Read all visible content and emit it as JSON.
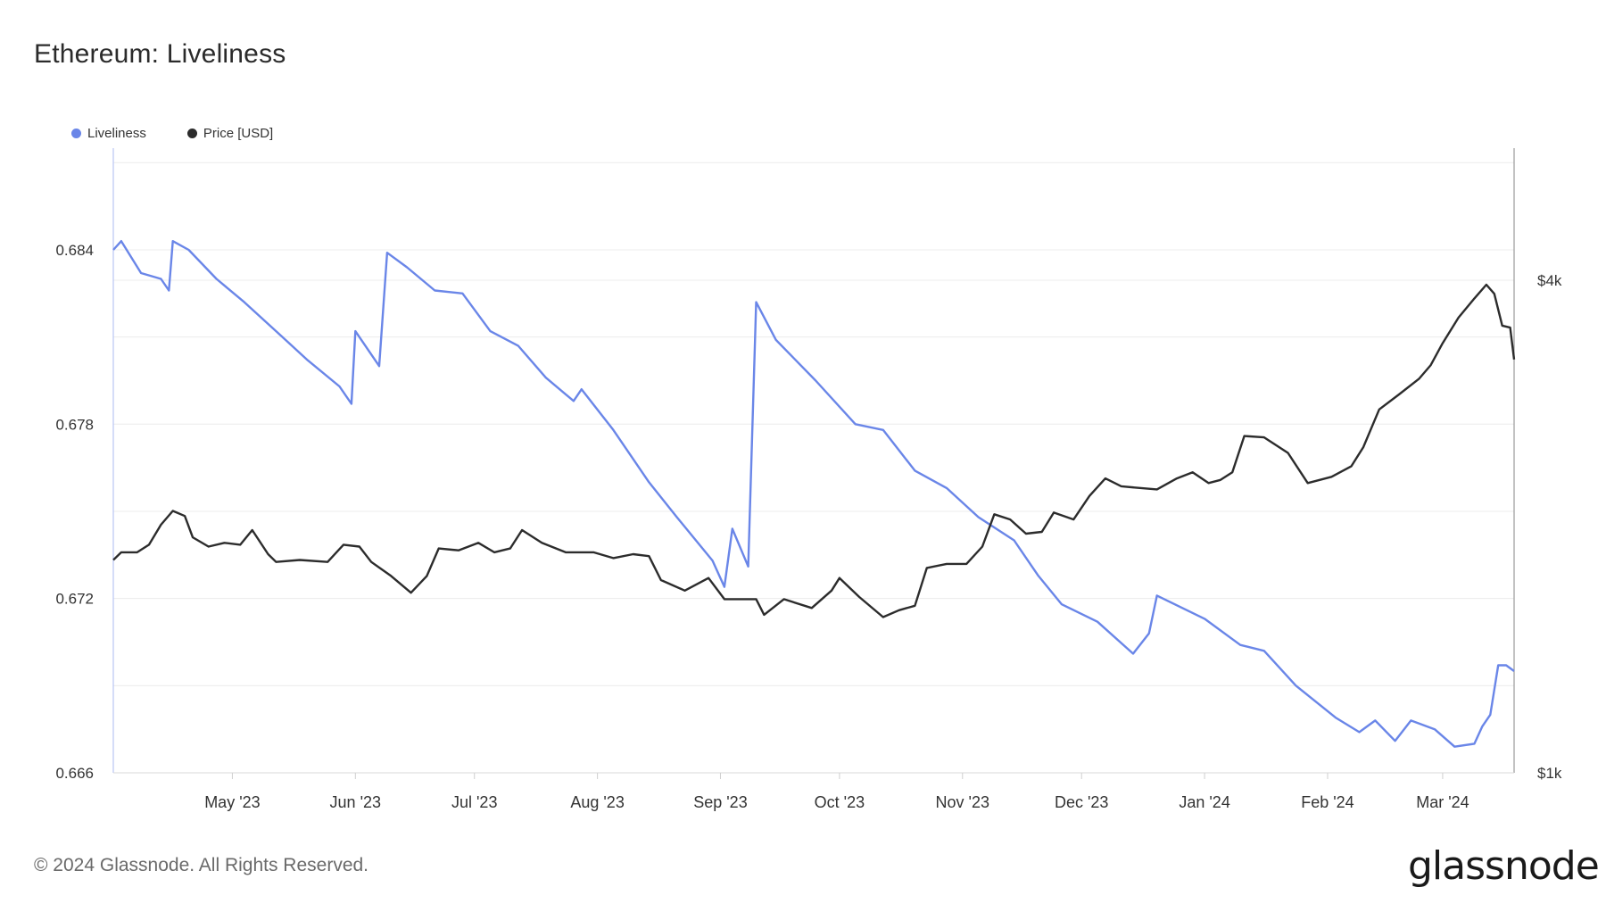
{
  "chart_data": {
    "type": "line",
    "title": "Ethereum: Liveliness",
    "legend_placement": "top-left",
    "grid": true,
    "x_ticks": [
      "May '23",
      "Jun '23",
      "Jul '23",
      "Aug '23",
      "Sep '23",
      "Oct '23",
      "Nov '23",
      "Dec '23",
      "Jan '24",
      "Feb '24",
      "Mar '24"
    ],
    "x_range": [
      "2023-04-01",
      "2024-03-19"
    ],
    "y_left": {
      "ticks": [
        "0.666",
        "0.672",
        "0.678",
        "0.684"
      ],
      "tick_values": [
        0.666,
        0.672,
        0.678,
        0.684
      ],
      "range": [
        0.666,
        0.6875
      ]
    },
    "y_right": {
      "scale": "log",
      "ticks": [
        "$1k",
        "$4k"
      ],
      "tick_values": [
        1000,
        4000
      ],
      "range": [
        1000,
        5800
      ]
    },
    "series": [
      {
        "name": "Liveliness",
        "color": "#6a86e8",
        "axis": "left",
        "points": [
          [
            "2023-04-01",
            0.684
          ],
          [
            "2023-04-03",
            0.6843
          ],
          [
            "2023-04-08",
            0.6832
          ],
          [
            "2023-04-13",
            0.683
          ],
          [
            "2023-04-15",
            0.6826
          ],
          [
            "2023-04-16",
            0.6843
          ],
          [
            "2023-04-20",
            0.684
          ],
          [
            "2023-04-27",
            0.683
          ],
          [
            "2023-05-04",
            0.6822
          ],
          [
            "2023-05-12",
            0.6812
          ],
          [
            "2023-05-20",
            0.6802
          ],
          [
            "2023-05-28",
            0.6793
          ],
          [
            "2023-05-31",
            0.6787
          ],
          [
            "2023-06-01",
            0.6812
          ],
          [
            "2023-06-07",
            0.68
          ],
          [
            "2023-06-09",
            0.6839
          ],
          [
            "2023-06-14",
            0.6834
          ],
          [
            "2023-06-21",
            0.6826
          ],
          [
            "2023-06-28",
            0.6825
          ],
          [
            "2023-07-05",
            0.6812
          ],
          [
            "2023-07-12",
            0.6807
          ],
          [
            "2023-07-19",
            0.6796
          ],
          [
            "2023-07-26",
            0.6788
          ],
          [
            "2023-07-28",
            0.6792
          ],
          [
            "2023-08-05",
            0.6778
          ],
          [
            "2023-08-14",
            0.676
          ],
          [
            "2023-08-21",
            0.6748
          ],
          [
            "2023-08-30",
            0.6733
          ],
          [
            "2023-09-02",
            0.6724
          ],
          [
            "2023-09-04",
            0.6744
          ],
          [
            "2023-09-08",
            0.6731
          ],
          [
            "2023-09-10",
            0.6822
          ],
          [
            "2023-09-15",
            0.6809
          ],
          [
            "2023-09-25",
            0.6795
          ],
          [
            "2023-10-05",
            0.678
          ],
          [
            "2023-10-12",
            0.6778
          ],
          [
            "2023-10-20",
            0.6764
          ],
          [
            "2023-10-28",
            0.6758
          ],
          [
            "2023-11-05",
            0.6748
          ],
          [
            "2023-11-14",
            0.674
          ],
          [
            "2023-11-20",
            0.6728
          ],
          [
            "2023-11-26",
            0.6718
          ],
          [
            "2023-12-05",
            0.6712
          ],
          [
            "2023-12-14",
            0.6701
          ],
          [
            "2023-12-18",
            0.6708
          ],
          [
            "2023-12-20",
            0.6721
          ],
          [
            "2024-01-01",
            0.6713
          ],
          [
            "2024-01-10",
            0.6704
          ],
          [
            "2024-01-16",
            0.6702
          ],
          [
            "2024-01-24",
            0.669
          ],
          [
            "2024-02-03",
            0.6679
          ],
          [
            "2024-02-09",
            0.6674
          ],
          [
            "2024-02-13",
            0.6678
          ],
          [
            "2024-02-18",
            0.6671
          ],
          [
            "2024-02-22",
            0.6678
          ],
          [
            "2024-02-28",
            0.6675
          ],
          [
            "2024-03-04",
            0.6669
          ],
          [
            "2024-03-09",
            0.667
          ],
          [
            "2024-03-11",
            0.6676
          ],
          [
            "2024-03-13",
            0.668
          ],
          [
            "2024-03-15",
            0.6697
          ],
          [
            "2024-03-17",
            0.6697
          ],
          [
            "2024-03-19",
            0.6695
          ]
        ]
      },
      {
        "name": "Price [USD]",
        "color": "#2c2c2c",
        "axis": "right",
        "points": [
          [
            "2023-04-01",
            1820
          ],
          [
            "2023-04-03",
            1860
          ],
          [
            "2023-04-07",
            1860
          ],
          [
            "2023-04-10",
            1900
          ],
          [
            "2023-04-13",
            2010
          ],
          [
            "2023-04-16",
            2090
          ],
          [
            "2023-04-19",
            2060
          ],
          [
            "2023-04-21",
            1940
          ],
          [
            "2023-04-25",
            1890
          ],
          [
            "2023-04-29",
            1910
          ],
          [
            "2023-05-03",
            1900
          ],
          [
            "2023-05-06",
            1980
          ],
          [
            "2023-05-10",
            1850
          ],
          [
            "2023-05-12",
            1810
          ],
          [
            "2023-05-18",
            1820
          ],
          [
            "2023-05-25",
            1810
          ],
          [
            "2023-05-29",
            1900
          ],
          [
            "2023-06-02",
            1890
          ],
          [
            "2023-06-05",
            1810
          ],
          [
            "2023-06-10",
            1740
          ],
          [
            "2023-06-15",
            1660
          ],
          [
            "2023-06-19",
            1740
          ],
          [
            "2023-06-22",
            1880
          ],
          [
            "2023-06-27",
            1870
          ],
          [
            "2023-07-02",
            1910
          ],
          [
            "2023-07-06",
            1860
          ],
          [
            "2023-07-10",
            1880
          ],
          [
            "2023-07-13",
            1980
          ],
          [
            "2023-07-18",
            1910
          ],
          [
            "2023-07-24",
            1860
          ],
          [
            "2023-07-31",
            1860
          ],
          [
            "2023-08-05",
            1830
          ],
          [
            "2023-08-10",
            1850
          ],
          [
            "2023-08-14",
            1840
          ],
          [
            "2023-08-17",
            1720
          ],
          [
            "2023-08-23",
            1670
          ],
          [
            "2023-08-29",
            1730
          ],
          [
            "2023-09-02",
            1630
          ],
          [
            "2023-09-10",
            1630
          ],
          [
            "2023-09-12",
            1560
          ],
          [
            "2023-09-17",
            1630
          ],
          [
            "2023-09-24",
            1590
          ],
          [
            "2023-09-29",
            1670
          ],
          [
            "2023-10-01",
            1730
          ],
          [
            "2023-10-06",
            1640
          ],
          [
            "2023-10-12",
            1550
          ],
          [
            "2023-10-16",
            1580
          ],
          [
            "2023-10-20",
            1600
          ],
          [
            "2023-10-23",
            1780
          ],
          [
            "2023-10-28",
            1800
          ],
          [
            "2023-11-02",
            1800
          ],
          [
            "2023-11-06",
            1890
          ],
          [
            "2023-11-09",
            2070
          ],
          [
            "2023-11-13",
            2040
          ],
          [
            "2023-11-17",
            1960
          ],
          [
            "2023-11-21",
            1970
          ],
          [
            "2023-11-24",
            2080
          ],
          [
            "2023-11-29",
            2040
          ],
          [
            "2023-12-03",
            2180
          ],
          [
            "2023-12-07",
            2290
          ],
          [
            "2023-12-11",
            2240
          ],
          [
            "2023-12-15",
            2230
          ],
          [
            "2023-12-20",
            2220
          ],
          [
            "2023-12-25",
            2290
          ],
          [
            "2023-12-29",
            2330
          ],
          [
            "2024-01-02",
            2260
          ],
          [
            "2024-01-05",
            2280
          ],
          [
            "2024-01-08",
            2330
          ],
          [
            "2024-01-11",
            2580
          ],
          [
            "2024-01-16",
            2570
          ],
          [
            "2024-01-22",
            2460
          ],
          [
            "2024-01-27",
            2260
          ],
          [
            "2024-02-02",
            2300
          ],
          [
            "2024-02-07",
            2370
          ],
          [
            "2024-02-10",
            2500
          ],
          [
            "2024-02-14",
            2780
          ],
          [
            "2024-02-19",
            2900
          ],
          [
            "2024-02-24",
            3030
          ],
          [
            "2024-02-27",
            3150
          ],
          [
            "2024-03-01",
            3350
          ],
          [
            "2024-03-05",
            3600
          ],
          [
            "2024-03-09",
            3800
          ],
          [
            "2024-03-12",
            3950
          ],
          [
            "2024-03-14",
            3850
          ],
          [
            "2024-03-16",
            3520
          ],
          [
            "2024-03-18",
            3500
          ],
          [
            "2024-03-19",
            3200
          ]
        ]
      }
    ]
  },
  "footer": {
    "copyright": "© 2024 Glassnode. All Rights Reserved.",
    "logo_text": "glassnode"
  }
}
